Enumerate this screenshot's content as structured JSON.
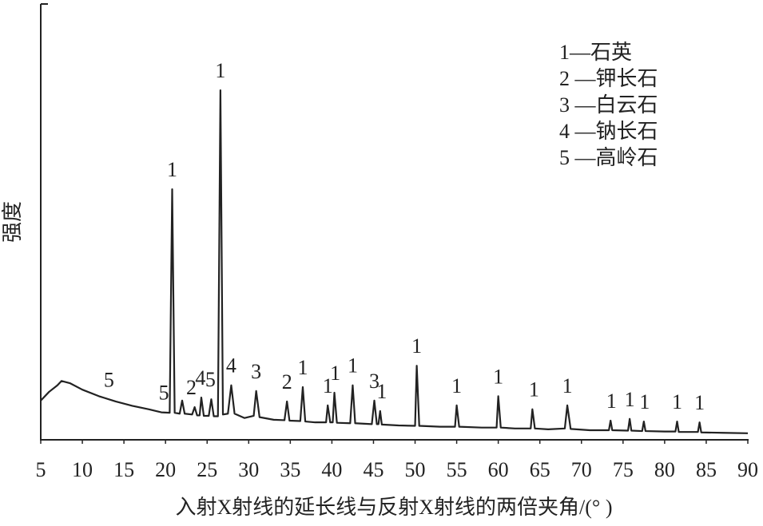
{
  "chart_data": {
    "type": "line",
    "x_label": "入射X射线的延长线与反射X射线的两倍夹角/(° )",
    "y_label": "强度",
    "legend": [
      "1—石英",
      "2 —钾长石",
      "3 —白云石",
      "4 —钠长石",
      "5 —高岭石"
    ],
    "color": "#222222",
    "xlim": [
      5,
      90
    ],
    "xticks": [
      5,
      10,
      15,
      20,
      25,
      30,
      35,
      40,
      45,
      50,
      55,
      60,
      65,
      70,
      75,
      80,
      85,
      90
    ],
    "ylim": [
      0,
      100
    ],
    "x": [
      5,
      6,
      7,
      7.5,
      8.5,
      10,
      12,
      14,
      16,
      18,
      19.5,
      20.5,
      20.8,
      21.1,
      21.7,
      22,
      22.3,
      23.2,
      23.5,
      23.8,
      24.1,
      24.3,
      24.6,
      25.2,
      25.5,
      25.8,
      26.3,
      26.6,
      26.9,
      27.5,
      27.9,
      28.3,
      29.5,
      30.6,
      30.9,
      31.3,
      33,
      34.3,
      34.6,
      34.9,
      36.2,
      36.5,
      36.8,
      38,
      39.3,
      39.5,
      39.8,
      40.1,
      40.3,
      40.6,
      42.2,
      42.5,
      42.8,
      44.8,
      45.1,
      45.4,
      45.6,
      45.8,
      46,
      48,
      50,
      50.2,
      50.5,
      53,
      54.8,
      55,
      55.3,
      58,
      59.8,
      60,
      60.3,
      62,
      63.9,
      64.1,
      64.4,
      66,
      68,
      68.3,
      68.7,
      71,
      73.3,
      73.5,
      73.7,
      75.6,
      75.8,
      76,
      77.3,
      77.5,
      77.7,
      80,
      81.3,
      81.5,
      81.7,
      84,
      84.2,
      84.4,
      87,
      90
    ],
    "values": [
      9,
      11,
      12.5,
      13.5,
      13,
      11.5,
      10,
      8.8,
      7.8,
      7,
      6.3,
      6.2,
      57.5,
      6.2,
      6,
      9,
      6,
      5.8,
      7.5,
      5.6,
      5.6,
      9.7,
      5.5,
      5.5,
      9.3,
      5.4,
      5.4,
      80.2,
      5.8,
      6,
      12.5,
      6,
      5,
      5.5,
      11.2,
      5.2,
      4.6,
      4.5,
      8.8,
      4.4,
      4.3,
      12.1,
      4.2,
      4,
      4,
      7.9,
      4,
      4,
      10.8,
      3.9,
      3.8,
      12.5,
      3.8,
      3.6,
      9,
      3.6,
      3.6,
      6.6,
      3.5,
      3.3,
      3.2,
      17,
      3.2,
      3,
      3,
      7.9,
      3,
      2.8,
      2.8,
      10,
      2.8,
      2.6,
      2.6,
      7,
      2.6,
      2.4,
      2.6,
      7.9,
      2.5,
      2.2,
      2.2,
      4.4,
      2.2,
      2.1,
      4.8,
      2.1,
      2,
      4.2,
      2,
      1.9,
      1.9,
      4.2,
      1.8,
      1.8,
      4,
      1.7,
      1.6,
      1.5
    ],
    "annotations": [
      {
        "text": "5",
        "x": 13.2
      },
      {
        "text": "5",
        "x": 19.8
      },
      {
        "text": "1",
        "x": 20.8
      },
      {
        "text": "2",
        "x": 23.1
      },
      {
        "text": "4",
        "x": 24.2
      },
      {
        "text": "5",
        "x": 25.4
      },
      {
        "text": "1",
        "x": 26.6
      },
      {
        "text": "4",
        "x": 27.9
      },
      {
        "text": "3",
        "x": 30.9
      },
      {
        "text": "2",
        "x": 34.6
      },
      {
        "text": "1",
        "x": 36.5
      },
      {
        "text": "1",
        "x": 39.5
      },
      {
        "text": "1",
        "x": 40.4
      },
      {
        "text": "1",
        "x": 42.5
      },
      {
        "text": "3",
        "x": 45.1
      },
      {
        "text": "1",
        "x": 46
      },
      {
        "text": "1",
        "x": 50.2
      },
      {
        "text": "1",
        "x": 55
      },
      {
        "text": "1",
        "x": 60
      },
      {
        "text": "1",
        "x": 64.3
      },
      {
        "text": "1",
        "x": 68.3
      },
      {
        "text": "1",
        "x": 73.6
      },
      {
        "text": "1",
        "x": 75.8
      },
      {
        "text": "1",
        "x": 77.6
      },
      {
        "text": "1",
        "x": 81.5
      },
      {
        "text": "1",
        "x": 84.2
      }
    ]
  }
}
